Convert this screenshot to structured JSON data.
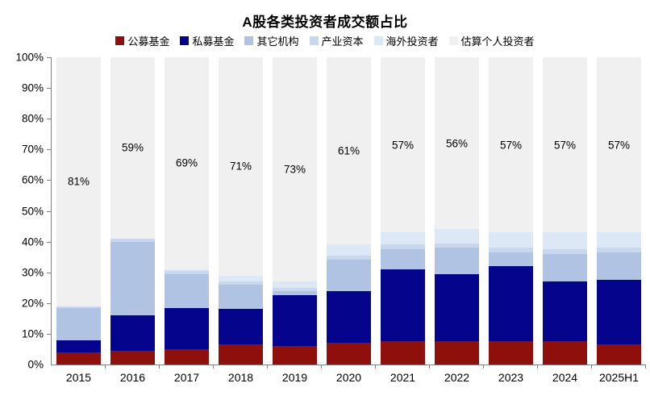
{
  "chart_data": {
    "type": "bar",
    "stacked": true,
    "title": "A股各类投资者成交额占比",
    "categories": [
      "2015",
      "2016",
      "2017",
      "2018",
      "2019",
      "2020",
      "2021",
      "2022",
      "2023",
      "2024",
      "2025H1"
    ],
    "series": [
      {
        "name": "公募基金",
        "color": "#8E0F0B",
        "values": [
          4,
          4.5,
          5,
          6.5,
          6,
          7,
          7.5,
          7.5,
          7.5,
          7.5,
          6.5
        ]
      },
      {
        "name": "私募基金",
        "color": "#04058C",
        "values": [
          4,
          11.5,
          13.5,
          11.5,
          16.5,
          17,
          23.5,
          22,
          24.5,
          19.5,
          21
        ]
      },
      {
        "name": "其它机构",
        "color": "#B0C3E3",
        "values": [
          10.5,
          24,
          11,
          8,
          1.5,
          10,
          6.5,
          8.5,
          4.5,
          9,
          9
        ]
      },
      {
        "name": "产业资本",
        "color": "#C9D7EE",
        "values": [
          0.5,
          1,
          1,
          1,
          1,
          1.5,
          1.5,
          1.5,
          1.5,
          1.5,
          1.5
        ]
      },
      {
        "name": "海外投资者",
        "color": "#DDE8F6",
        "values": [
          0,
          0,
          0.5,
          2,
          2,
          3.5,
          4,
          4.5,
          5,
          5.5,
          5
        ]
      },
      {
        "name": "估算个人投资者",
        "color": "#F0F0F0",
        "values": [
          81,
          59,
          69,
          71,
          73,
          61,
          57,
          56,
          57,
          57,
          57
        ]
      }
    ],
    "bar_labels": [
      "81%",
      "59%",
      "69%",
      "71%",
      "73%",
      "61%",
      "57%",
      "56%",
      "57%",
      "57%",
      "57%"
    ],
    "y_tick_labels": [
      "100%",
      "90%",
      "80%",
      "70%",
      "60%",
      "50%",
      "40%",
      "30%",
      "20%",
      "10%",
      "0%"
    ],
    "ylim": [
      0,
      100
    ],
    "legend_position": "top",
    "grid": false,
    "axis_color": "#808080"
  }
}
